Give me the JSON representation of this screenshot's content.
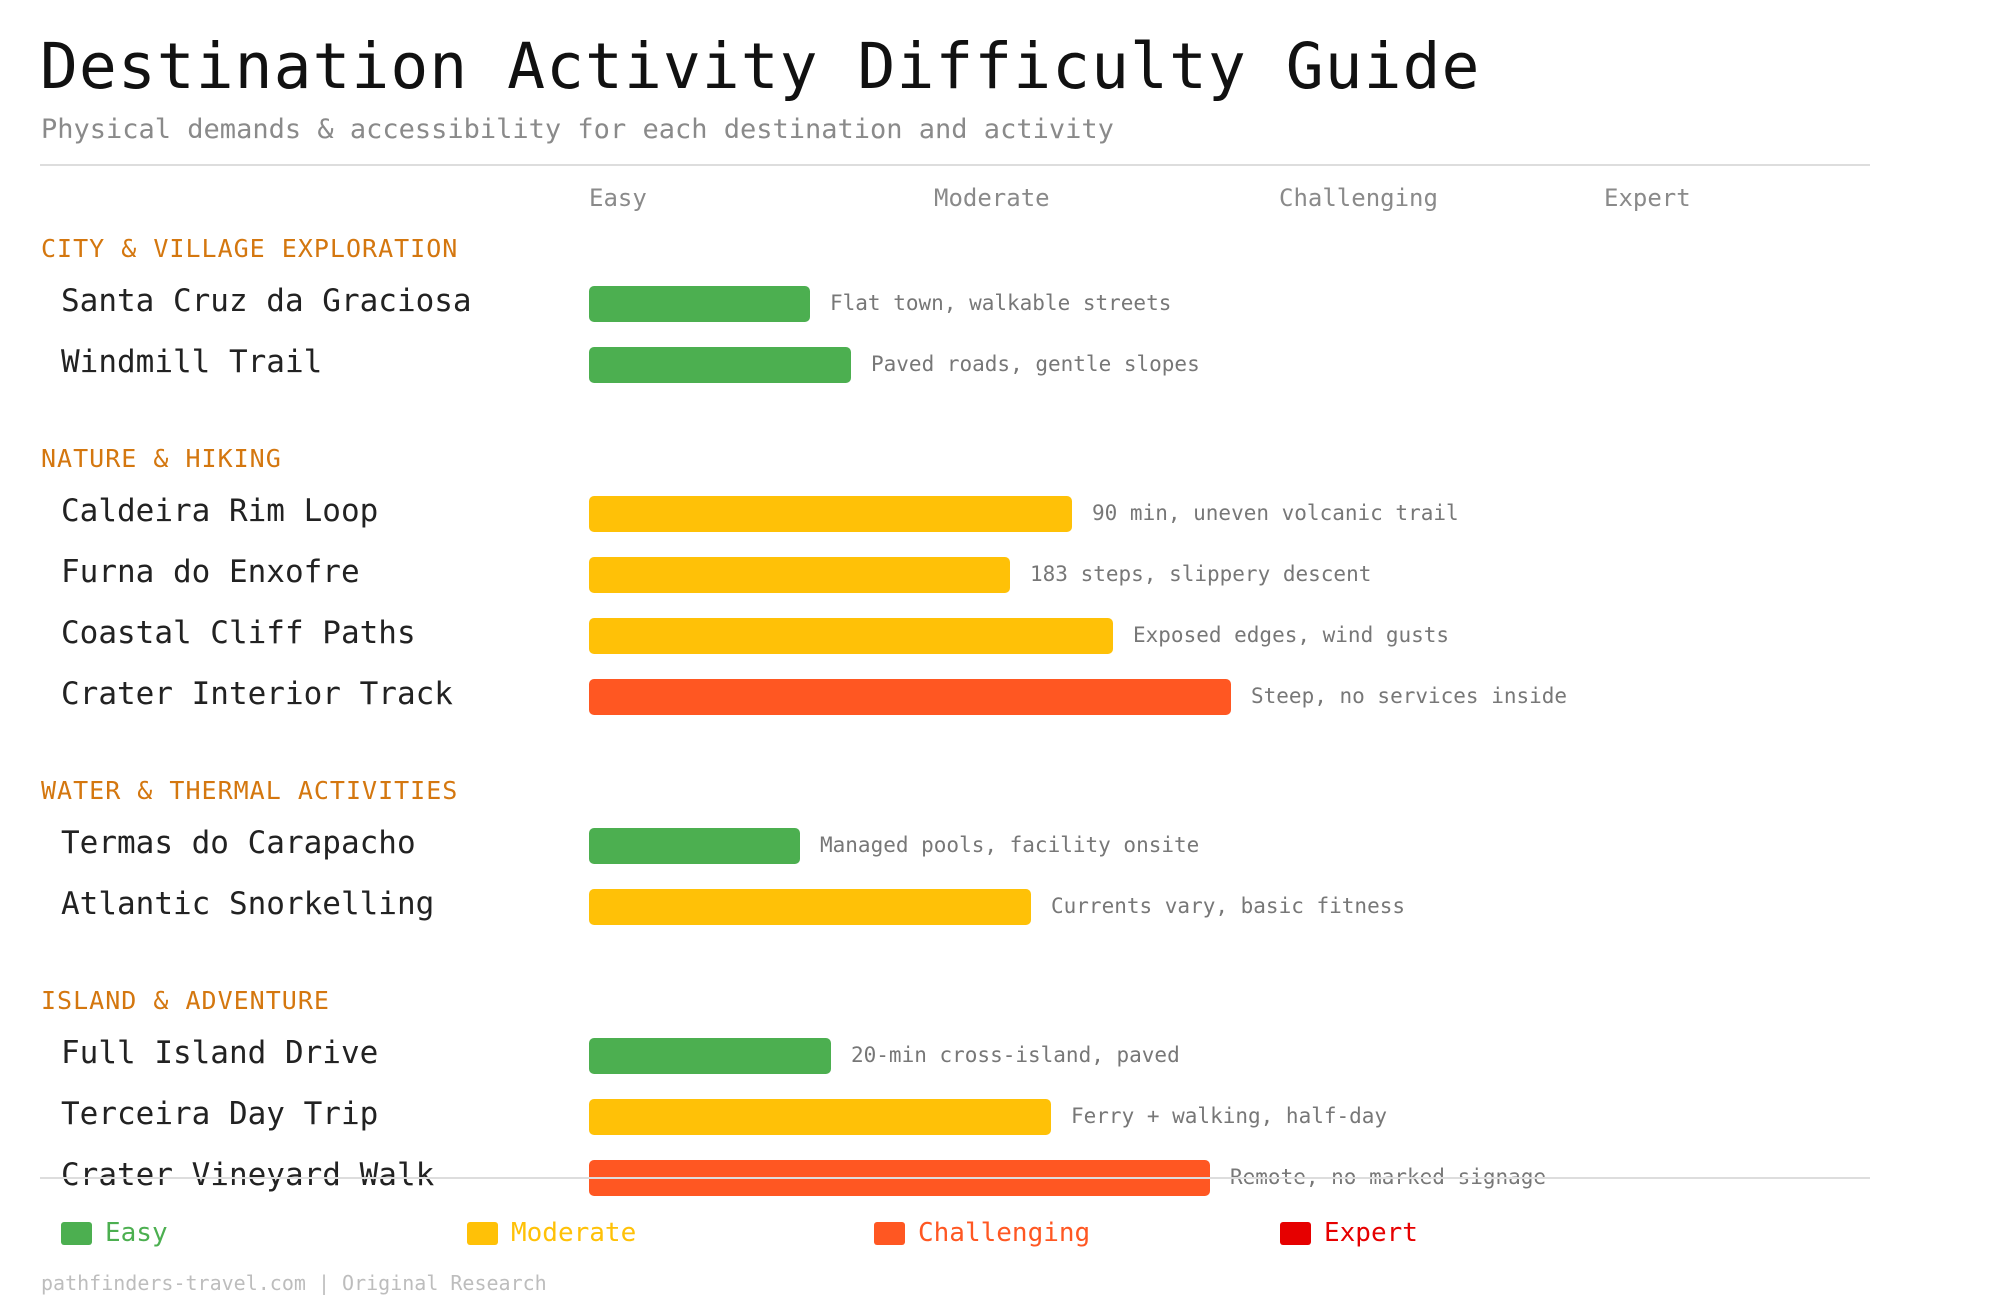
{
  "title": "Destination Activity Difficulty Guide",
  "subtitle": "Physical demands & accessibility for each destination and activity",
  "colors": {
    "Easy": "#4caf50",
    "Moderate": "#ffc107",
    "Challenging": "#ff5722",
    "Expert": "#e60000",
    "category": "#d4770f"
  },
  "chart_data": {
    "type": "bar",
    "orientation": "horizontal",
    "scale_labels": [
      "Easy",
      "Moderate",
      "Challenging",
      "Expert"
    ],
    "xlim": [
      0,
      100
    ],
    "grid": false,
    "legend_position": "bottom",
    "groups": [
      {
        "category": "CITY & VILLAGE EXPLORATION",
        "rows": [
          {
            "label": "Santa Cruz da Graciosa",
            "value": 16,
            "level": "Easy",
            "note": "Flat town, walkable streets"
          },
          {
            "label": "Windmill Trail",
            "value": 19,
            "level": "Easy",
            "note": "Paved roads, gentle slopes"
          }
        ]
      },
      {
        "category": "NATURE & HIKING",
        "rows": [
          {
            "label": "Caldeira Rim Loop",
            "value": 35,
            "level": "Moderate",
            "note": "90 min, uneven volcanic trail"
          },
          {
            "label": "Furna do Enxofre",
            "value": 30.5,
            "level": "Moderate",
            "note": "183 steps, slippery descent"
          },
          {
            "label": "Coastal Cliff Paths",
            "value": 38,
            "level": "Moderate",
            "note": "Exposed edges, wind gusts"
          },
          {
            "label": "Crater Interior Track",
            "value": 46.5,
            "level": "Challenging",
            "note": "Steep, no services inside"
          }
        ]
      },
      {
        "category": "WATER & THERMAL ACTIVITIES",
        "rows": [
          {
            "label": "Termas do Carapacho",
            "value": 15.3,
            "level": "Easy",
            "note": "Managed pools, facility onsite"
          },
          {
            "label": "Atlantic Snorkelling",
            "value": 32,
            "level": "Moderate",
            "note": "Currents vary, basic fitness"
          }
        ]
      },
      {
        "category": "ISLAND & ADVENTURE",
        "rows": [
          {
            "label": "Full Island Drive",
            "value": 17.5,
            "level": "Easy",
            "note": "20-min cross-island, paved"
          },
          {
            "label": "Terceira Day Trip",
            "value": 33.5,
            "level": "Moderate",
            "note": "Ferry + walking, half-day"
          },
          {
            "label": "Crater Vineyard Walk",
            "value": 45,
            "level": "Challenging",
            "note": "Remote, no marked signage"
          }
        ]
      }
    ]
  },
  "legend": [
    {
      "label": "Easy"
    },
    {
      "label": "Moderate"
    },
    {
      "label": "Challenging"
    },
    {
      "label": "Expert"
    }
  ],
  "footer": "pathfinders-travel.com | Original Research"
}
